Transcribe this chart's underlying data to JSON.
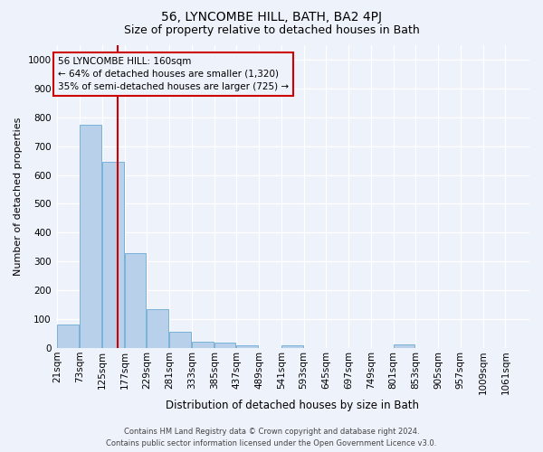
{
  "title": "56, LYNCOMBE HILL, BATH, BA2 4PJ",
  "subtitle": "Size of property relative to detached houses in Bath",
  "xlabel": "Distribution of detached houses by size in Bath",
  "ylabel": "Number of detached properties",
  "bar_color": "#b8d0ea",
  "bar_edge_color": "#6aaad4",
  "vline_x": 160,
  "vline_color": "#cc0000",
  "annotation_title": "56 LYNCOMBE HILL: 160sqm",
  "annotation_line2": "← 64% of detached houses are smaller (1,320)",
  "annotation_line3": "35% of semi-detached houses are larger (725) →",
  "annotation_box_color": "#cc0000",
  "footer_line1": "Contains HM Land Registry data © Crown copyright and database right 2024.",
  "footer_line2": "Contains public sector information licensed under the Open Government Licence v3.0.",
  "bins": [
    21,
    73,
    125,
    177,
    229,
    281,
    333,
    385,
    437,
    489,
    541,
    593,
    645,
    697,
    749,
    801,
    853,
    905,
    957,
    1009,
    1061
  ],
  "bin_labels": [
    "21sqm",
    "73sqm",
    "125sqm",
    "177sqm",
    "229sqm",
    "281sqm",
    "333sqm",
    "385sqm",
    "437sqm",
    "489sqm",
    "541sqm",
    "593sqm",
    "645sqm",
    "697sqm",
    "749sqm",
    "801sqm",
    "853sqm",
    "905sqm",
    "957sqm",
    "1009sqm",
    "1061sqm"
  ],
  "values": [
    83,
    775,
    645,
    330,
    135,
    58,
    22,
    18,
    11,
    0,
    10,
    0,
    0,
    0,
    0,
    12,
    0,
    0,
    0,
    0,
    0
  ],
  "ylim": [
    0,
    1050
  ],
  "yticks": [
    0,
    100,
    200,
    300,
    400,
    500,
    600,
    700,
    800,
    900,
    1000
  ],
  "background_color": "#eef2fb",
  "plot_bg_color": "#eef2fb",
  "grid_color": "#ffffff",
  "title_fontsize": 10,
  "subtitle_fontsize": 9,
  "xlabel_fontsize": 8.5,
  "ylabel_fontsize": 8,
  "tick_fontsize": 7.5,
  "annot_fontsize": 7.5,
  "footer_fontsize": 6
}
